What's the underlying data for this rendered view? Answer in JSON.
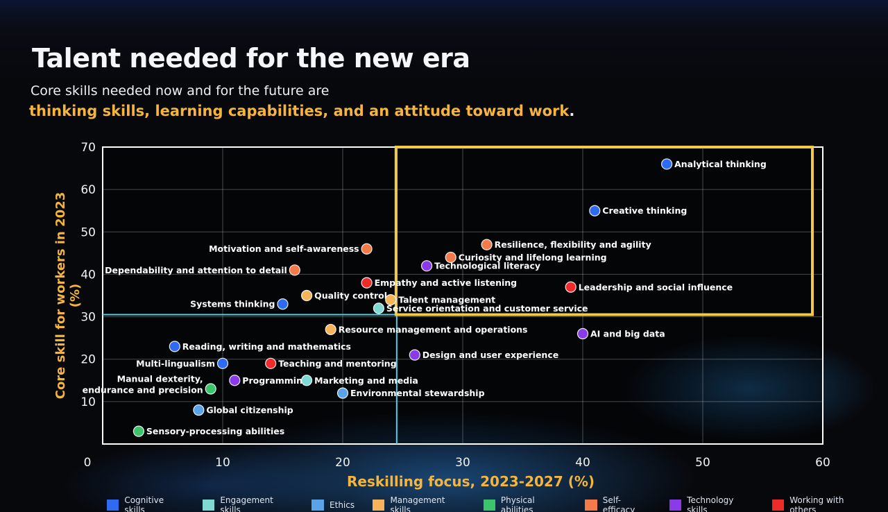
{
  "heading": {
    "title": "Talent needed for the new era",
    "line1": "Core skills needed now and for the future are",
    "line2": "thinking skills, learning capabilities, and an attitude toward work",
    "line2_end": "."
  },
  "colors": {
    "Cognitive skills": "#2f6bf2",
    "Engagement skills": "#7fd8d2",
    "Ethics": "#5aa3e8",
    "Management skills": "#f6b45a",
    "Physical abilities": "#3cc46a",
    "Self-efficacy": "#f47a4a",
    "Technology skills": "#8a3ae8",
    "Working with others": "#ee2a2a",
    "accent": "#f5b53d",
    "highlight_box": "#f3c94a",
    "threshold_lines": "#4ad0e8"
  },
  "chart_data": {
    "type": "scatter",
    "xlabel": "Reskilling focus, 2023-2027 (%)",
    "ylabel": "Core skill for workers in 2023 (%)",
    "xlim": [
      0,
      60
    ],
    "ylim": [
      0,
      70
    ],
    "xticks": [
      0,
      10,
      20,
      30,
      40,
      50,
      60
    ],
    "yticks": [
      10,
      20,
      30,
      40,
      50,
      60,
      70
    ],
    "grid": true,
    "legend_position": "bottom",
    "threshold_lines": {
      "x": 24.5,
      "y": 30.5
    },
    "highlight_region": {
      "x": [
        24.5,
        60
      ],
      "y": [
        30.5,
        70
      ]
    },
    "legend": [
      "Cognitive skills",
      "Engagement skills",
      "Ethics",
      "Management skills",
      "Physical abilities",
      "Self-efficacy",
      "Technology skills",
      "Working with others"
    ],
    "points": [
      {
        "label": "Analytical thinking",
        "category": "Cognitive skills",
        "x": 47,
        "y": 66
      },
      {
        "label": "Creative thinking",
        "category": "Cognitive skills",
        "x": 41,
        "y": 55
      },
      {
        "label": "Resilience, flexibility and agility",
        "category": "Self-efficacy",
        "x": 32,
        "y": 47
      },
      {
        "label": "Motivation and self-awareness",
        "category": "Self-efficacy",
        "x": 22,
        "y": 46
      },
      {
        "label": "Curiosity and lifelong learning",
        "category": "Self-efficacy",
        "x": 29,
        "y": 44
      },
      {
        "label": "Technological literacy",
        "category": "Technology skills",
        "x": 27,
        "y": 42
      },
      {
        "label": "Dependability and attention to detail",
        "category": "Self-efficacy",
        "x": 16,
        "y": 41
      },
      {
        "label": "Empathy and active listening",
        "category": "Working with others",
        "x": 22,
        "y": 38
      },
      {
        "label": "Leadership and social influence",
        "category": "Working with others",
        "x": 39,
        "y": 37
      },
      {
        "label": "Quality control",
        "category": "Management skills",
        "x": 17,
        "y": 35
      },
      {
        "label": "Talent management",
        "category": "Management skills",
        "x": 24,
        "y": 34
      },
      {
        "label": "Systems thinking",
        "category": "Cognitive skills",
        "x": 15,
        "y": 33
      },
      {
        "label": "Service orientation and customer service",
        "category": "Engagement skills",
        "x": 23,
        "y": 32
      },
      {
        "label": "Resource management and operations",
        "category": "Management skills",
        "x": 19,
        "y": 27
      },
      {
        "label": "AI and big data",
        "category": "Technology skills",
        "x": 40,
        "y": 26
      },
      {
        "label": "Reading, writing and mathematics",
        "category": "Cognitive skills",
        "x": 6,
        "y": 23
      },
      {
        "label": "Design and user experience",
        "category": "Technology skills",
        "x": 26,
        "y": 21
      },
      {
        "label": "Multi-lingualism",
        "category": "Cognitive skills",
        "x": 10,
        "y": 19
      },
      {
        "label": "Teaching and mentoring",
        "category": "Working with others",
        "x": 14,
        "y": 19
      },
      {
        "label": "Programming",
        "category": "Technology skills",
        "x": 11,
        "y": 15
      },
      {
        "label": "Marketing and media",
        "category": "Engagement skills",
        "x": 17,
        "y": 15
      },
      {
        "label": "Manual dexterity,",
        "label2": "endurance and precision",
        "category": "Physical abilities",
        "x": 9,
        "y": 13
      },
      {
        "label": "Environmental stewardship",
        "category": "Ethics",
        "x": 20,
        "y": 12
      },
      {
        "label": "Global citizenship",
        "category": "Ethics",
        "x": 8,
        "y": 8
      },
      {
        "label": "Sensory-processing abilities",
        "category": "Physical abilities",
        "x": 3,
        "y": 3
      }
    ]
  }
}
